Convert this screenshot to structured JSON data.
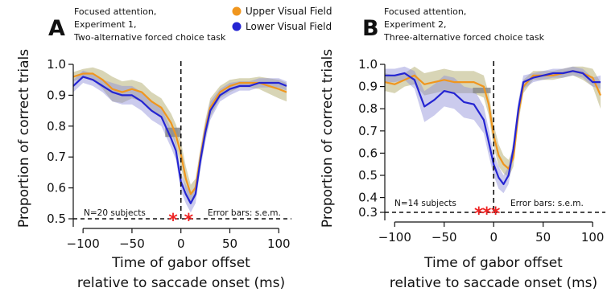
{
  "colors": {
    "upper": "#f0961e",
    "lower": "#2424d2",
    "upper_band": "#b8b27a",
    "lower_band": "#8c8cd8",
    "gray_box": "#8a8a8a",
    "star": "#ee2222"
  },
  "legend": {
    "upper_label": "Upper Visual Field",
    "lower_label": "Lower Visual Field"
  },
  "chart_data": [
    {
      "type": "line",
      "panel_letter": "A",
      "title": [
        "Focused attention,",
        "Experiment 1,",
        "Two-alternative forced choice task"
      ],
      "xlabel": [
        "Time of gabor offset",
        "relative to saccade onset (ms)"
      ],
      "ylabel": "Proportion of correct trials",
      "xlim": [
        -110,
        108
      ],
      "ylim": [
        0.5,
        1.0
      ],
      "xticks": [
        -100,
        -50,
        0,
        50,
        100
      ],
      "yticks": [
        0.5,
        0.6,
        0.7,
        0.8,
        0.9,
        1.0
      ],
      "ytick_labels": [
        "0.5",
        "0.6",
        "0.7",
        "0.8",
        "0.9",
        "1.0"
      ],
      "chance_level": 0.5,
      "saccade_onset_x": 0,
      "annotation_left": "N=20 subjects",
      "annotation_right": "Error bars: s.e.m.",
      "significance_x": [
        -8,
        8
      ],
      "gray_box": {
        "x": [
          -16,
          0
        ],
        "y": [
          0.765,
          0.795
        ]
      },
      "series": [
        {
          "name": "Upper Visual Field",
          "x": [
            -110,
            -100,
            -90,
            -80,
            -70,
            -60,
            -50,
            -40,
            -30,
            -20,
            -10,
            -5,
            0,
            5,
            10,
            15,
            20,
            25,
            30,
            40,
            50,
            60,
            70,
            80,
            90,
            100,
            108
          ],
          "y": [
            0.96,
            0.97,
            0.97,
            0.95,
            0.92,
            0.91,
            0.92,
            0.91,
            0.88,
            0.86,
            0.81,
            0.77,
            0.71,
            0.63,
            0.58,
            0.6,
            0.7,
            0.79,
            0.86,
            0.91,
            0.93,
            0.94,
            0.94,
            0.94,
            0.93,
            0.92,
            0.91
          ],
          "err": [
            0.015,
            0.015,
            0.02,
            0.03,
            0.04,
            0.035,
            0.03,
            0.03,
            0.03,
            0.03,
            0.03,
            0.035,
            0.04,
            0.04,
            0.03,
            0.03,
            0.03,
            0.03,
            0.03,
            0.02,
            0.02,
            0.015,
            0.015,
            0.02,
            0.025,
            0.03,
            0.03
          ]
        },
        {
          "name": "Lower Visual Field",
          "x": [
            -110,
            -100,
            -90,
            -80,
            -70,
            -60,
            -50,
            -40,
            -30,
            -20,
            -10,
            -5,
            0,
            5,
            10,
            15,
            20,
            25,
            30,
            40,
            50,
            60,
            70,
            80,
            90,
            100,
            108
          ],
          "y": [
            0.93,
            0.96,
            0.95,
            0.93,
            0.91,
            0.9,
            0.9,
            0.88,
            0.85,
            0.83,
            0.76,
            0.72,
            0.62,
            0.58,
            0.55,
            0.58,
            0.69,
            0.78,
            0.85,
            0.9,
            0.92,
            0.93,
            0.93,
            0.94,
            0.94,
            0.94,
            0.93
          ],
          "err": [
            0.02,
            0.02,
            0.02,
            0.02,
            0.03,
            0.03,
            0.03,
            0.03,
            0.03,
            0.03,
            0.03,
            0.03,
            0.03,
            0.03,
            0.03,
            0.03,
            0.03,
            0.03,
            0.03,
            0.02,
            0.02,
            0.015,
            0.015,
            0.015,
            0.015,
            0.015,
            0.015
          ]
        }
      ]
    },
    {
      "type": "line",
      "panel_letter": "B",
      "title": [
        "Focused attention,",
        "Experiment 2,",
        "Three-alternative forced choice task"
      ],
      "xlabel": [
        "Time of gabor offset",
        "relative to saccade onset (ms)"
      ],
      "ylabel": "Proportion of correct trials",
      "xlim": [
        -110,
        108
      ],
      "ylim": [
        0.3333,
        1.0
      ],
      "xticks": [
        -100,
        -50,
        0,
        50,
        100
      ],
      "yticks": [
        0.3333,
        0.4,
        0.5,
        0.6,
        0.7,
        0.8,
        0.9,
        1.0
      ],
      "ytick_labels": [
        "0.3",
        "0.4",
        "0.5",
        "0.6",
        "0.7",
        "0.8",
        "0.9",
        "1.0"
      ],
      "chance_level": 0.3333,
      "saccade_onset_x": 0,
      "annotation_left": "N=14 subjects",
      "annotation_right": "Error bars: s.e.m.",
      "significance_x": [
        -15,
        -7,
        2
      ],
      "gray_box": {
        "x": [
          -21,
          -3
        ],
        "y": [
          0.87,
          0.895
        ]
      },
      "series": [
        {
          "name": "Upper Visual Field",
          "x": [
            -110,
            -100,
            -90,
            -80,
            -70,
            -60,
            -50,
            -40,
            -30,
            -20,
            -10,
            -5,
            0,
            5,
            10,
            15,
            20,
            25,
            30,
            40,
            50,
            60,
            70,
            80,
            90,
            100,
            108
          ],
          "y": [
            0.92,
            0.91,
            0.93,
            0.95,
            0.91,
            0.92,
            0.93,
            0.92,
            0.92,
            0.92,
            0.9,
            0.82,
            0.68,
            0.59,
            0.55,
            0.53,
            0.58,
            0.78,
            0.9,
            0.95,
            0.95,
            0.95,
            0.96,
            0.97,
            0.96,
            0.94,
            0.86
          ],
          "err": [
            0.04,
            0.04,
            0.03,
            0.04,
            0.05,
            0.05,
            0.05,
            0.05,
            0.05,
            0.05,
            0.05,
            0.05,
            0.05,
            0.05,
            0.04,
            0.04,
            0.04,
            0.04,
            0.03,
            0.02,
            0.02,
            0.02,
            0.02,
            0.02,
            0.03,
            0.04,
            0.06
          ]
        },
        {
          "name": "Lower Visual Field",
          "x": [
            -110,
            -100,
            -90,
            -80,
            -70,
            -60,
            -50,
            -40,
            -30,
            -20,
            -10,
            -5,
            0,
            5,
            10,
            15,
            20,
            25,
            30,
            40,
            50,
            60,
            70,
            80,
            90,
            100,
            108
          ],
          "y": [
            0.95,
            0.95,
            0.96,
            0.93,
            0.81,
            0.84,
            0.88,
            0.87,
            0.83,
            0.82,
            0.75,
            0.65,
            0.55,
            0.49,
            0.46,
            0.5,
            0.62,
            0.8,
            0.92,
            0.94,
            0.95,
            0.96,
            0.96,
            0.97,
            0.96,
            0.92,
            0.92
          ],
          "err": [
            0.03,
            0.03,
            0.03,
            0.04,
            0.07,
            0.07,
            0.07,
            0.07,
            0.07,
            0.07,
            0.06,
            0.06,
            0.05,
            0.05,
            0.04,
            0.04,
            0.04,
            0.04,
            0.03,
            0.02,
            0.02,
            0.02,
            0.02,
            0.02,
            0.02,
            0.02,
            0.03
          ]
        }
      ]
    }
  ]
}
